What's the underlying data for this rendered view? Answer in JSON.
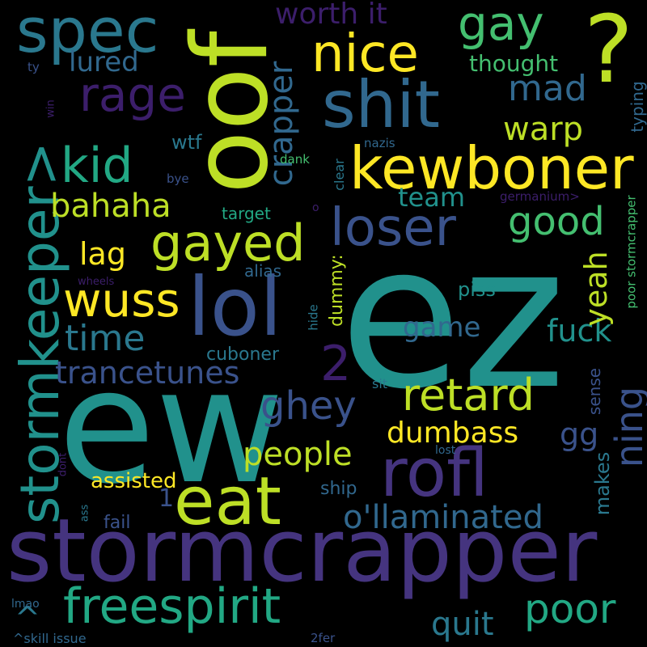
{
  "words": {
    "ez": "ez",
    "ew": "ew",
    "stormcrapper": "stormcrapper",
    "oof": "oof",
    "lol": "lol",
    "question": "?",
    "shit": "shit",
    "spec": "spec",
    "stormkeeper": "stormkeeper>",
    "kewboner": "kewboner",
    "rofl": "rofl",
    "eat": "eat",
    "freespirit": "freespirit",
    "loser": "loser",
    "gayed": "gayed",
    "nice": "nice",
    "gay": "gay",
    "rage": "rage",
    "retard": "retard",
    "wuss": "wuss",
    "kid": "kid",
    "crapper": "crapper",
    "ning": "ning",
    "poor": "poor",
    "ghey": "ghey",
    "good": "good",
    "time": "time",
    "warp": "warp",
    "mad": "mad",
    "trancetunes": "trancetunes",
    "ollaminated": "o'llaminated",
    "bahaha": "bahaha",
    "two": "2",
    "people": "people",
    "quit": "quit",
    "dumbass": "dumbass",
    "lag": "lag",
    "gg": "gg",
    "fuck": "fuck",
    "game": "game",
    "team": "team",
    "worth_it": "worth it",
    "lured": "lured",
    "yeah": "yeah",
    "thought": "thought",
    "caret": "^",
    "one": "1",
    "assisted": "assisted",
    "cuboner": "cuboner",
    "makes": "makes",
    "piss": "piss",
    "wtf": "wtf",
    "ship": "ship",
    "dummy": "dummy:",
    "target": "target",
    "alias": "alias",
    "typing": "typing",
    "fail": "fail",
    "sense": "sense",
    "poor_stormcrapper": "poor stormcrapper",
    "skill_issue": "^skill issue",
    "clear": "clear",
    "germanium": "germanium>",
    "nazis": "nazis",
    "dank": "dank",
    "bye": "bye",
    "wheels": "wheels",
    "lmao": "lmao",
    "ty": "ty",
    "win": "win",
    "hide": "hide",
    "sit": "sit",
    "lost": "lost",
    "dont": "dont",
    "ass": "ass",
    "twofer": "2fer",
    "o": "o"
  },
  "palette": {
    "background": "#000000",
    "dark_purple": "#3c1e6b",
    "indigo": "#45347f",
    "slate_blue": "#3a528b",
    "blue": "#31688e",
    "teal_blue": "#2a788e",
    "teal": "#21918c",
    "sea_green": "#22a884",
    "green": "#44bf70",
    "lime": "#7ad151",
    "yellow_green": "#bddf26",
    "yellow": "#fde725"
  }
}
